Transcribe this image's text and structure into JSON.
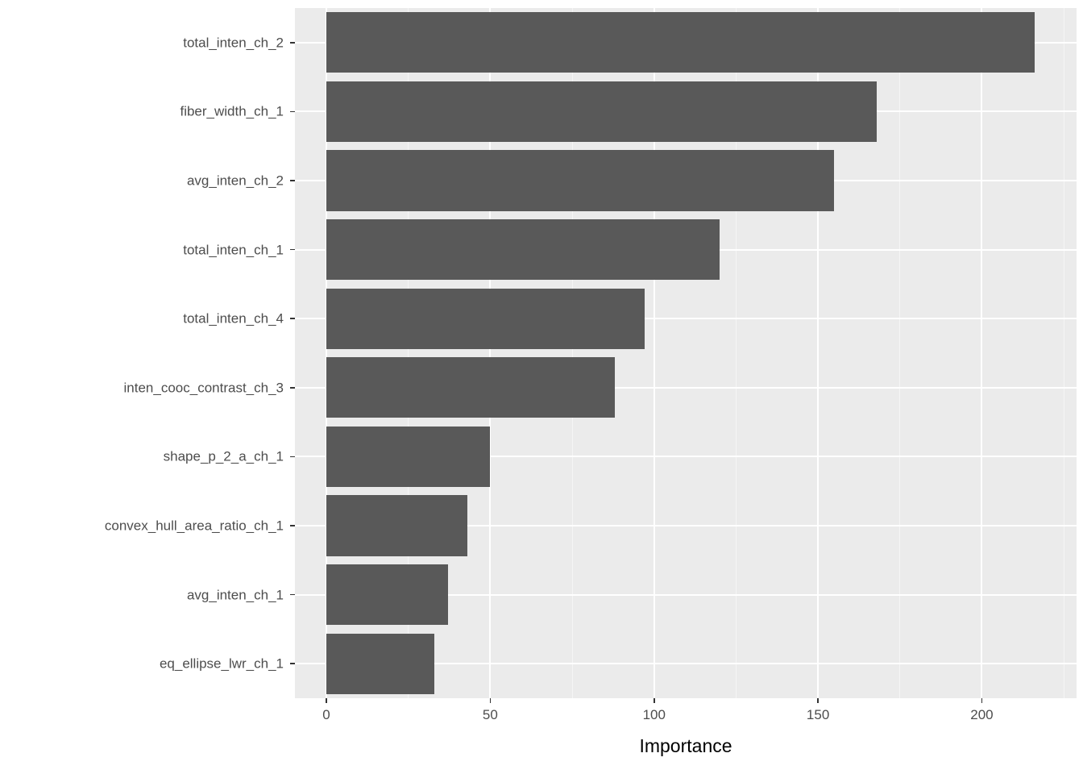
{
  "chart_data": {
    "type": "bar",
    "orientation": "horizontal",
    "title": "",
    "xlabel": "Importance",
    "ylabel": "",
    "categories": [
      "total_inten_ch_2",
      "fiber_width_ch_1",
      "avg_inten_ch_2",
      "total_inten_ch_1",
      "total_inten_ch_4",
      "inten_cooc_contrast_ch_3",
      "shape_p_2_a_ch_1",
      "convex_hull_area_ratio_ch_1",
      "avg_inten_ch_1",
      "eq_ellipse_lwr_ch_1"
    ],
    "values": [
      216,
      168,
      155,
      120,
      97,
      88,
      50,
      43,
      37,
      33
    ],
    "xlim": [
      -9.6,
      228.9
    ],
    "x_ticks": [
      0,
      50,
      100,
      150,
      200
    ],
    "x_tick_labels": [
      "0",
      "50",
      "100",
      "150",
      "200"
    ],
    "x_minor_ticks": [
      25,
      75,
      125,
      175,
      225
    ],
    "grid": true,
    "legend": false,
    "colors": {
      "bar": "#595959",
      "panel_bg": "#EBEBEB",
      "grid_major": "#FFFFFF",
      "grid_minor": "#F5F5F5",
      "tick_text": "#4D4D4D",
      "axis_title": "#000000",
      "tick_mark": "#333333"
    }
  }
}
